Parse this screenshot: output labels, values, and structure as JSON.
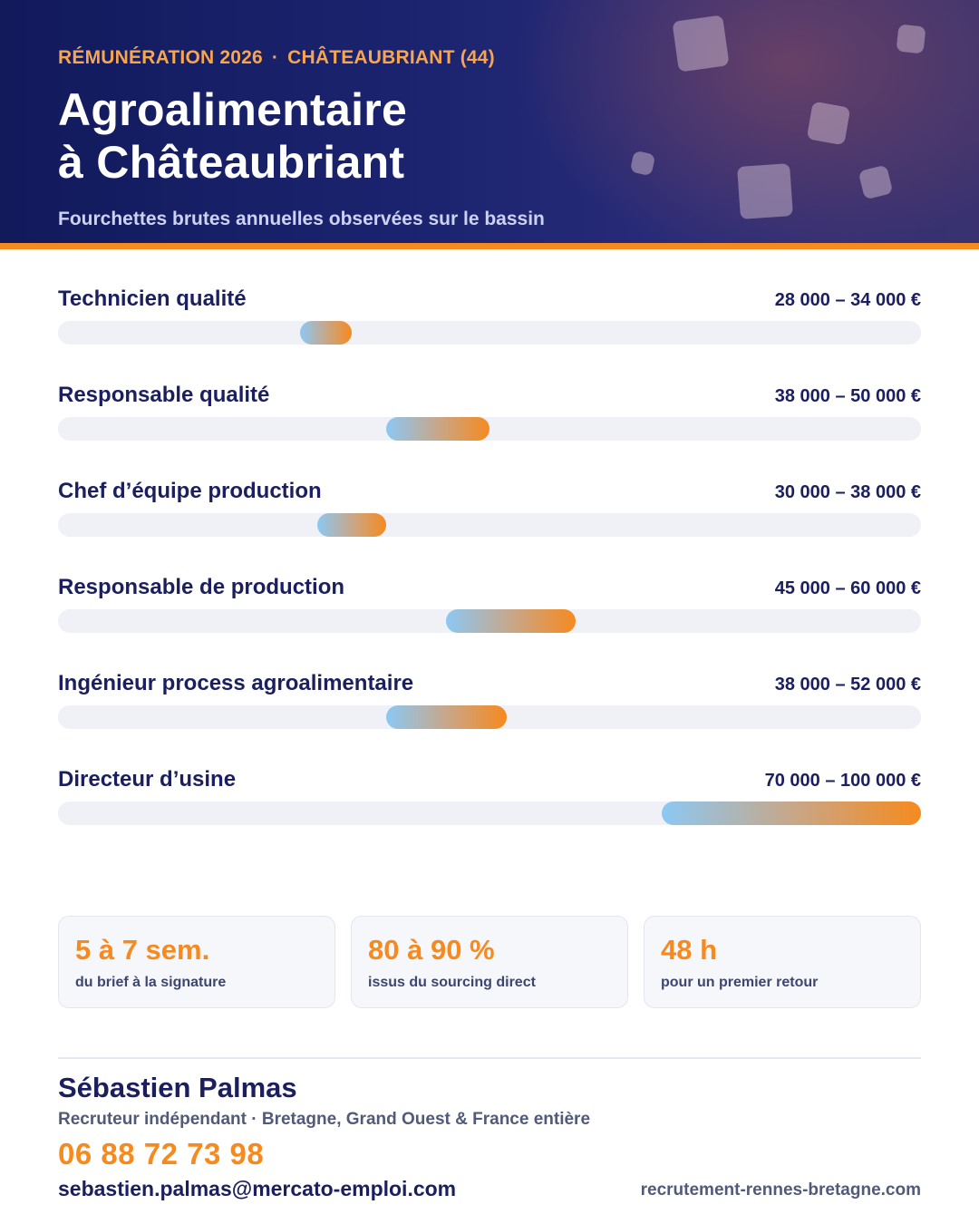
{
  "header": {
    "eyebrow_left": "RÉMUNÉRATION 2026",
    "eyebrow_separator": "·",
    "eyebrow_right": "CHÂTEAUBRIANT (44)",
    "title_line1": "Agroalimentaire",
    "title_line2": "à Châteaubriant",
    "subtitle": "Fourchettes brutes annuelles observées sur le bassin"
  },
  "colors": {
    "navy": "#1b1f5e",
    "orange": "#f68a1f",
    "bar_start": "#8cc8f3",
    "track": "#eff1f7"
  },
  "salaries": {
    "scale_max": 100000,
    "rows": [
      {
        "label": "Technicien qualité",
        "range": "28 000 – 34 000 €",
        "min": 28000,
        "max": 34000
      },
      {
        "label": "Responsable qualité",
        "range": "38 000 – 50 000 €",
        "min": 38000,
        "max": 50000
      },
      {
        "label": "Chef d’équipe production",
        "range": "30 000 – 38 000 €",
        "min": 30000,
        "max": 38000
      },
      {
        "label": "Responsable de production",
        "range": "45 000 – 60 000 €",
        "min": 45000,
        "max": 60000
      },
      {
        "label": "Ingénieur process agroalimentaire",
        "range": "38 000 – 52 000 €",
        "min": 38000,
        "max": 52000
      },
      {
        "label": "Directeur d’usine",
        "range": "70 000 – 100 000 €",
        "min": 70000,
        "max": 100000
      }
    ]
  },
  "stats": [
    {
      "value": "5 à 7 sem.",
      "label": "du brief à la signature"
    },
    {
      "value": "80 à 90 %",
      "label": "issus du sourcing direct"
    },
    {
      "value": "48 h",
      "label": "pour un premier retour"
    }
  ],
  "contact": {
    "name": "Sébastien Palmas",
    "role": "Recruteur indépendant · Bretagne, Grand Ouest & France entière",
    "phone": "06 88 72 73 98",
    "email": "sebastien.palmas@mercato-emploi.com",
    "website": "recrutement-rennes-bretagne.com"
  }
}
